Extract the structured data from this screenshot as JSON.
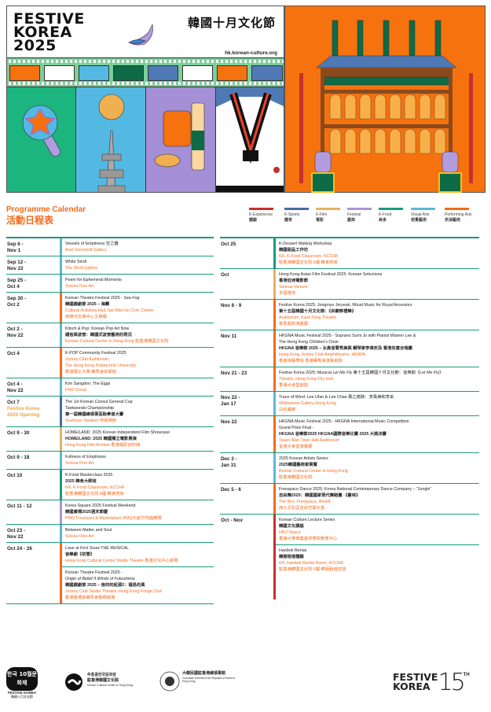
{
  "header": {
    "title_lines": [
      "FESTIVE",
      "KOREA",
      "2025"
    ],
    "title_zh": "韓國十月文化節",
    "url": "hk.korean-culture.org"
  },
  "colors": {
    "teal_rule": "#1a9b7b",
    "accent_orange": "#f26b1d",
    "opening_note": "#f2a33a"
  },
  "calendar": {
    "title": "Programme Calendar",
    "title_zh": "活動日程表"
  },
  "legend": [
    {
      "key": "experience",
      "label": "K-Experience",
      "zh": "體驗",
      "color": "#c8302e"
    },
    {
      "key": "sports",
      "label": "K-Sports",
      "zh": "體育",
      "color": "#4a6aa5"
    },
    {
      "key": "film",
      "label": "K-Film",
      "zh": "電影",
      "color": "#e8b060"
    },
    {
      "key": "festival",
      "label": "Festival",
      "zh": "慶典",
      "color": "#a897d0"
    },
    {
      "key": "food",
      "label": "K-Food",
      "zh": "美食",
      "color": "#1a9b7b"
    },
    {
      "key": "visual",
      "label": "Visual Arts",
      "zh": "視覺藝術",
      "color": "#5bb8d8"
    },
    {
      "key": "performing",
      "label": "Performing Arts",
      "zh": "表演藝術",
      "color": "#f26b1d"
    }
  ],
  "left": [
    {
      "date": [
        "Sep 6 -",
        "Nov 1"
      ],
      "cat": "visual",
      "events": [
        {
          "title": [
            {
              "t": "Vessels of Emptiness 空之器"
            }
          ],
          "venue": [
            "Axel Vervoordt Gallery"
          ]
        }
      ]
    },
    {
      "date": [
        "Sep 12 -",
        "Nov 22"
      ],
      "cat": "visual",
      "events": [
        {
          "title": [
            {
              "t": "White Stroll"
            }
          ],
          "venue": [
            "The Stroll Gallery"
          ]
        }
      ]
    },
    {
      "date": [
        "Sep 25 -",
        "Oct 4"
      ],
      "cat": "visual",
      "events": [
        {
          "title": [
            {
              "t": "Poem for Ephemeral Moments"
            }
          ],
          "venue": [
            "Soluna Fine Art"
          ]
        }
      ]
    },
    {
      "date": [
        "Sep 30 -",
        "Oct 2"
      ],
      "cat": "performing",
      "events": [
        {
          "title": [
            {
              "t": "Korean Theatre Festival 2025 - "
            },
            {
              "t": "Sea Fog",
              "i": true
            }
          ],
          "zh": [
            "韓國戲劇節 2025 – 海霧"
          ],
          "venue": [
            "Cultural Activities Hall, Sai Wan Ho Civic Centre",
            "西灣河文娛中心文娛廳"
          ]
        }
      ]
    },
    {
      "date": [
        "Oct 2 -",
        "Nov 22"
      ],
      "cat": "visual",
      "events": [
        {
          "title": [
            {
              "t": "Kitsch & Pop: Korean Pop Art Now"
            }
          ],
          "zh": [
            "媚俗與波普：韓國式波普藝術的現況"
          ],
          "venue": [
            "Korean Cultural Center in Hong Kong 駐香港韓國文化院"
          ]
        }
      ]
    },
    {
      "date": [
        "Oct 4"
      ],
      "cat": "performing",
      "events": [
        {
          "title": [
            {
              "t": "K-POP Community Festival 2025"
            }
          ],
          "venue": [
            "Jockey Club Auditorium,",
            "The Hong Kong Polytechnic University",
            "香港理工大學 賽馬會綜藝館"
          ]
        }
      ]
    },
    {
      "date": [
        "Oct 4 -",
        "Nov 22"
      ],
      "cat": "visual",
      "events": [
        {
          "title": [
            {
              "t": "Kim Sangdon: The Eggs"
            }
          ],
          "venue": [
            "PHD Group"
          ]
        }
      ]
    },
    {
      "date": [
        "Oct 7"
      ],
      "note": [
        "Festive Korea",
        "2025 Opening"
      ],
      "cat": "sports",
      "events": [
        {
          "title": [
            {
              "t": "The 1st Korean Consul General Cup"
            }
          ],
          "title2": "Taekwondo Championship",
          "zh": [
            "第一屆韓國總領事盃跆拳道大賽"
          ],
          "venue": [
            "Southorn Stadium 修頓場館"
          ]
        }
      ]
    },
    {
      "date": [
        "Oct 9 - 30"
      ],
      "cat": "film",
      "events": [
        {
          "title": [
            {
              "t": "HOME/LAND: 2025 Korean Independent Film Showcase"
            }
          ],
          "zh": [
            "HOME/LAND: 2025 韓國獨立電影展演"
          ],
          "venue": [
            "Hong Kong Film Archive 香港電影資料館"
          ]
        }
      ]
    },
    {
      "date": [
        "Oct 9 - 18"
      ],
      "cat": "visual",
      "events": [
        {
          "title": [
            {
              "t": "Fullness of Emptiness"
            }
          ],
          "venue": [
            "Soluna Fine Art"
          ]
        }
      ]
    },
    {
      "date": [
        "Oct 10"
      ],
      "cat": "food",
      "events": [
        {
          "title": [
            {
              "t": "K-Food Masterclass 2025"
            }
          ],
          "zh": [
            "2025 韓食大師班"
          ],
          "venue": [
            "6/F, K-Food Classroom, KCCHK",
            "駐香港韓國文化院 6樓 韓食廚房"
          ]
        }
      ]
    },
    {
      "date": [
        "Oct 11 - 12"
      ],
      "cat": "festival",
      "events": [
        {
          "title": [
            {
              "t": "Korea Square 2025 Festival Weekend"
            }
          ],
          "zh": [
            "韓國廣場2025週末節慶"
          ],
          "venue": [
            "PMQ Courtyard & Marketplace PMQ元創方地面廣場"
          ]
        }
      ]
    },
    {
      "date": [
        "Oct 23 -",
        "Nov 22"
      ],
      "cat": "visual",
      "events": [
        {
          "title": [
            {
              "t": "Between Matter and Soul"
            }
          ],
          "venue": [
            "Soluna Fine Art"
          ]
        }
      ]
    },
    {
      "date": [
        "Oct 24 - 26"
      ],
      "cat": "performing",
      "events": [
        {
          "title": [
            {
              "t": "Love at First Snow",
              "i": true
            },
            {
              "t": " THE MUSICAL"
            }
          ],
          "zh": [
            "音樂劇《初雪》"
          ],
          "venue": [
            "Hong Kong Cultural Centre Studio Theatre 香港文化中心劇場"
          ]
        },
        {
          "title": [
            {
              "t": "Korean Theatre Festival 2025 -"
            }
          ],
          "title2i": "Origin of Belief II Winds of Fukushima",
          "zh": [
            "韓國戲劇節 2025 – 信仰的起源2：福島的風"
          ],
          "venue": [
            "Jockey Club Studio Theatre, Hong Kong Fringe Club",
            "香港藝穗會賽馬會藝穗劇場"
          ]
        }
      ]
    }
  ],
  "right": [
    {
      "date": [
        "Oct 25"
      ],
      "cat": "food",
      "events": [
        {
          "title": [
            {
              "t": "K-Dessert Making Workshop"
            }
          ],
          "zh": [
            "韓國甜品工作坊"
          ],
          "venue": [
            "6/F, K-Food Classroom, KCCHK",
            "駐香港韓國文化院 6樓 韓食廚房"
          ]
        }
      ]
    },
    {
      "date": [
        "Oct"
      ],
      "cat": "film",
      "events": [
        {
          "title": [
            {
              "t": "Hong Kong Asian Film Festival 2025: Korean Selections"
            }
          ],
          "zh": [
            "香港亞洲電影節"
          ],
          "venue": [
            "Various Venues",
            "多個場地"
          ]
        }
      ]
    },
    {
      "date": [
        "Nov 8 - 9"
      ],
      "cat": "performing",
      "events": [
        {
          "title": [
            {
              "t": "Festive Korea 2025: Jongmyo Jeryeak, Ritual Music for Royal Ancestors"
            }
          ],
          "zh": [
            "第十五屆韓國十月文化節：《宗廟祭禮樂》"
          ],
          "venue": [
            "Auditorium, Kwai Tsing Theatre",
            "葵青劇院演藝廳"
          ]
        }
      ]
    },
    {
      "date": [
        "Nov 11"
      ],
      "cat": "performing",
      "events": [
        {
          "title": [
            {
              "t": "HKGNA Music Festival 2025 - Soprano Sumi Jo with Pianist Warren Lee &"
            }
          ],
          "title2": "The Hong Kong Children's Choir",
          "zh": [
            "HKGNA 音樂節 2025 – 女高音曹秀美與 鋼琴家李偉安及 香港兒童合唱團"
          ],
          "venue": [
            "Hong Kong Jockey Club Amphitheatre, HKAPA",
            "香港演藝學院 香港賽馬會演藝劇院"
          ]
        }
      ]
    },
    {
      "date": [
        "Nov 21 - 23"
      ],
      "cat": "performing",
      "events": [
        {
          "title": [
            {
              "t": "Festive Korea 2025: Musical "
            },
            {
              "t": "Let Me Fly",
              "i": true
            },
            {
              "t": " 第十五屆韓國十月文化節：音樂劇《Let Me Fly》"
            }
          ],
          "venue": [
            "Theatre, Hong Kong City Hall",
            "香港大會堂劇院"
          ]
        }
      ]
    },
    {
      "date": [
        "Nov 22 -",
        "Jan 17"
      ],
      "cat": "visual",
      "events": [
        {
          "title": [
            {
              "t": "Trace of Wind: Lee Ufan & Lee Chae 風之痕跡：李禹煥和李采"
            }
          ],
          "venue": [
            "Whitestone Gallery Hong Kong",
            "白石畫廊"
          ]
        }
      ]
    },
    {
      "date": [
        "Nov 22"
      ],
      "cat": "performing",
      "events": [
        {
          "title": [
            {
              "t": "HKGNA Music Festival 2025 - HKGNA International Music Competition"
            }
          ],
          "title2": "Grand Prize Final  -",
          "zh": [
            "HKGNA 音樂節2025  HKGNA國際音樂比賽 2025 大獎決賽"
          ],
          "venue": [
            "Tsuen Wan Town Hall Auditorium",
            "荃灣大會堂演奏廳"
          ]
        }
      ]
    },
    {
      "date": [
        "Dec 3 -",
        "Jan 31"
      ],
      "cat": "visual",
      "events": [
        {
          "title": [
            {
              "t": "2025 Korean Artists Series"
            }
          ],
          "zh": [
            "2025韓國藝術家展覽"
          ],
          "venue": [
            "Korean Cultural Center in Hong Kong",
            "駐香港韓國文化院"
          ]
        }
      ]
    },
    {
      "date": [
        "Dec 5 - 6"
      ],
      "cat": "performing",
      "events": [
        {
          "title": [
            {
              "t": "Freespace Dance 2025: Korea National Contemporary Dance Company – \"Jungle\""
            }
          ],
          "zh": [
            "自由舞2025：韓國國家現代舞蹈團 《叢林》"
          ],
          "venue": [
            "The Box, Freespace, WestK",
            "西九文化區自由空間大盒"
          ]
        }
      ]
    },
    {
      "date": [
        "Oct - Nov"
      ],
      "cat": "experience",
      "last": true,
      "events": [
        {
          "title": [
            {
              "t": "Korean Culture Lecture Series"
            }
          ],
          "zh": [
            "韓國文化講座"
          ],
          "venue": [
            "HKU Space",
            "香港大學專業進修學院教學中心"
          ]
        },
        {
          "title": [
            {
              "t": "Hanbok Rental"
            }
          ],
          "zh": [
            "韓服租借體驗"
          ],
          "venue": [
            "6/F, Hanbok Rental Room, KCCHK",
            "駐香港韓國文化院 6樓 韓服租借空間"
          ]
        }
      ]
    }
  ],
  "footer": {
    "fk_logo": {
      "ko": "한국 10월문화제",
      "en": "FESTIVE KOREA",
      "zh": "韓國十月文化節"
    },
    "kcc": {
      "ko": "주홍콩한국문화원",
      "zh": "駐香港韓國文化院",
      "en": "Korean Cultural Center in Hong Kong"
    },
    "consulate": {
      "zh": "大韓民國駐香港總領事館",
      "en": "Consulate General of the Republic of Korea in Hong Kong"
    },
    "anniv": {
      "lines": [
        "FESTIVE",
        "KOREA"
      ],
      "num": "15",
      "suffix": "TH"
    }
  }
}
